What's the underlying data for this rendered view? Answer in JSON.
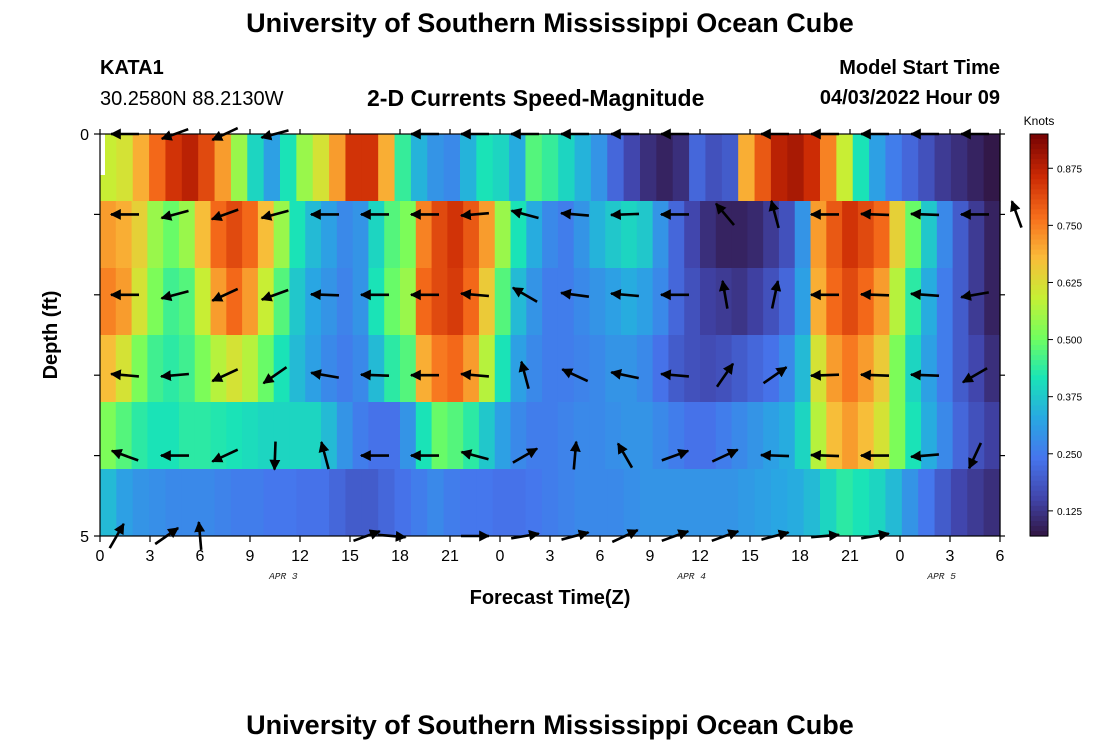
{
  "header": {
    "title": "University of Southern Mississippi Ocean Cube",
    "station": "KATA1",
    "coords": "30.2580N  88.2130W",
    "plot_title": "2-D Currents Speed-Magnitude",
    "model_label": "Model Start Time",
    "model_value": "04/03/2022 Hour 09"
  },
  "footer": {
    "title": "University of Southern Mississippi Ocean Cube"
  },
  "chart_data": {
    "type": "heatmap",
    "xlabel": "Forecast Time(Z)",
    "ylabel": "Depth (ft)",
    "x_ticks": [
      "0",
      "3",
      "6",
      "9",
      "12",
      "15",
      "18",
      "21",
      "0",
      "3",
      "6",
      "9",
      "12",
      "15",
      "18",
      "21",
      "0",
      "3",
      "6"
    ],
    "date_labels": [
      {
        "label": "APR 3",
        "hour": 11
      },
      {
        "label": "APR 4",
        "hour": 35.5
      },
      {
        "label": "APR 5",
        "hour": 50.5
      }
    ],
    "xlim": [
      0,
      54
    ],
    "ylim": [
      0,
      5
    ],
    "y_ticks": [
      "0",
      "",
      "",
      "",
      "",
      "5"
    ],
    "depth_rows": [
      0,
      1,
      2,
      3,
      4,
      5
    ],
    "colorbar": {
      "label": "Knots",
      "min": 0.07,
      "max": 0.95,
      "ticks": [
        "0.125",
        "0.250",
        "0.375",
        "0.500",
        "0.625",
        "0.750",
        "0.875"
      ]
    },
    "speed_knots": [
      [
        0.6,
        0.62,
        0.7,
        0.78,
        0.85,
        0.88,
        0.82,
        0.72,
        0.55,
        0.4,
        0.32,
        0.42,
        0.55,
        0.62,
        0.72,
        0.85,
        0.85,
        0.7,
        0.45,
        0.35,
        0.3,
        0.28,
        0.35,
        0.42,
        0.4,
        0.34,
        0.48,
        0.45,
        0.4,
        0.35,
        0.3,
        0.22,
        0.16,
        0.12,
        0.1,
        0.12,
        0.22,
        0.18,
        0.2,
        0.7,
        0.8,
        0.88,
        0.9,
        0.86,
        0.75,
        0.6,
        0.42,
        0.32,
        0.26,
        0.22,
        0.18,
        0.14,
        0.12,
        0.1,
        0.08
      ],
      [
        0.72,
        0.7,
        0.65,
        0.55,
        0.5,
        0.55,
        0.68,
        0.78,
        0.82,
        0.78,
        0.68,
        0.55,
        0.42,
        0.36,
        0.32,
        0.28,
        0.3,
        0.4,
        0.48,
        0.52,
        0.75,
        0.82,
        0.85,
        0.8,
        0.72,
        0.55,
        0.42,
        0.34,
        0.28,
        0.26,
        0.3,
        0.35,
        0.38,
        0.4,
        0.38,
        0.3,
        0.22,
        0.16,
        0.12,
        0.1,
        0.1,
        0.11,
        0.14,
        0.18,
        0.3,
        0.72,
        0.8,
        0.85,
        0.82,
        0.78,
        0.65,
        0.5,
        0.38,
        0.28,
        0.2,
        0.14,
        0.1
      ],
      [
        0.75,
        0.72,
        0.62,
        0.52,
        0.46,
        0.48,
        0.6,
        0.72,
        0.78,
        0.72,
        0.6,
        0.48,
        0.38,
        0.33,
        0.3,
        0.27,
        0.3,
        0.42,
        0.5,
        0.55,
        0.78,
        0.82,
        0.84,
        0.78,
        0.66,
        0.48,
        0.36,
        0.3,
        0.26,
        0.26,
        0.28,
        0.3,
        0.32,
        0.34,
        0.32,
        0.28,
        0.22,
        0.18,
        0.15,
        0.14,
        0.13,
        0.15,
        0.18,
        0.22,
        0.32,
        0.7,
        0.78,
        0.82,
        0.78,
        0.72,
        0.58,
        0.44,
        0.34,
        0.26,
        0.2,
        0.14,
        0.1
      ],
      [
        0.68,
        0.62,
        0.52,
        0.46,
        0.44,
        0.46,
        0.52,
        0.58,
        0.62,
        0.58,
        0.5,
        0.42,
        0.36,
        0.32,
        0.28,
        0.26,
        0.28,
        0.36,
        0.44,
        0.48,
        0.7,
        0.76,
        0.78,
        0.72,
        0.58,
        0.42,
        0.32,
        0.28,
        0.26,
        0.26,
        0.27,
        0.28,
        0.3,
        0.3,
        0.28,
        0.24,
        0.2,
        0.18,
        0.17,
        0.18,
        0.2,
        0.22,
        0.24,
        0.28,
        0.36,
        0.62,
        0.72,
        0.76,
        0.72,
        0.66,
        0.52,
        0.4,
        0.32,
        0.26,
        0.2,
        0.16,
        0.12
      ],
      [
        0.52,
        0.48,
        0.44,
        0.42,
        0.42,
        0.44,
        0.44,
        0.43,
        0.42,
        0.41,
        0.4,
        0.4,
        0.4,
        0.4,
        0.36,
        0.3,
        0.26,
        0.24,
        0.24,
        0.3,
        0.42,
        0.5,
        0.48,
        0.44,
        0.38,
        0.32,
        0.28,
        0.26,
        0.26,
        0.27,
        0.28,
        0.28,
        0.29,
        0.3,
        0.3,
        0.28,
        0.26,
        0.24,
        0.24,
        0.26,
        0.28,
        0.3,
        0.32,
        0.34,
        0.4,
        0.58,
        0.68,
        0.72,
        0.68,
        0.62,
        0.52,
        0.42,
        0.34,
        0.28,
        0.22,
        0.18,
        0.15
      ],
      [
        0.36,
        0.32,
        0.3,
        0.29,
        0.28,
        0.28,
        0.28,
        0.27,
        0.26,
        0.26,
        0.25,
        0.25,
        0.24,
        0.24,
        0.22,
        0.2,
        0.2,
        0.22,
        0.24,
        0.26,
        0.28,
        0.26,
        0.25,
        0.25,
        0.24,
        0.24,
        0.25,
        0.26,
        0.27,
        0.28,
        0.28,
        0.28,
        0.29,
        0.3,
        0.3,
        0.3,
        0.3,
        0.3,
        0.3,
        0.31,
        0.32,
        0.33,
        0.34,
        0.36,
        0.4,
        0.44,
        0.42,
        0.4,
        0.36,
        0.3,
        0.25,
        0.2,
        0.16,
        0.14,
        0.12
      ]
    ],
    "vector_hours": [
      1.5,
      4.5,
      7.5,
      10.5,
      13.5,
      16.5,
      19.5,
      22.5,
      25.5,
      28.5,
      31.5,
      34.5,
      37.5,
      40.5,
      43.5,
      46.5,
      49.5,
      52.5
    ],
    "vector_rows": [
      {
        "depth": 0,
        "hours": [
          1.5,
          4.5,
          7.5,
          10.5,
          19.5,
          22.5,
          25.5,
          28.5,
          31.5,
          34.5,
          40.5,
          43.5,
          46.5,
          49.5,
          52.5
        ],
        "dirs": [
          180,
          200,
          205,
          195,
          180,
          180,
          180,
          180,
          180,
          180,
          180,
          180,
          180,
          180,
          180
        ]
      },
      {
        "depth": 1,
        "hours": [
          1.5,
          4.5,
          7.5,
          10.5,
          13.5,
          16.5,
          19.5,
          22.5,
          25.5,
          28.5,
          31.5,
          34.5,
          37.5,
          40.5,
          43.5,
          46.5,
          49.5,
          52.5,
          55
        ],
        "dirs": [
          180,
          195,
          200,
          195,
          180,
          180,
          180,
          185,
          165,
          175,
          182,
          180,
          130,
          105,
          180,
          178,
          178,
          180,
          110
        ]
      },
      {
        "depth": 2,
        "hours": [
          1.5,
          4.5,
          7.5,
          10.5,
          13.5,
          16.5,
          19.5,
          22.5,
          25.5,
          28.5,
          31.5,
          34.5,
          37.5,
          40.5,
          43.5,
          46.5,
          49.5,
          52.5
        ],
        "dirs": [
          180,
          195,
          205,
          200,
          178,
          180,
          180,
          175,
          150,
          172,
          175,
          180,
          100,
          78,
          180,
          178,
          176,
          190
        ]
      },
      {
        "depth": 3,
        "hours": [
          1.5,
          4.5,
          7.5,
          10.5,
          13.5,
          16.5,
          19.5,
          22.5,
          25.5,
          28.5,
          31.5,
          34.5,
          37.5,
          40.5,
          43.5,
          46.5,
          49.5,
          52.5
        ],
        "dirs": [
          175,
          185,
          205,
          215,
          170,
          178,
          180,
          175,
          105,
          155,
          168,
          175,
          55,
          35,
          182,
          178,
          178,
          210
        ]
      },
      {
        "depth": 4,
        "hours": [
          1.5,
          4.5,
          7.5,
          10.5,
          13.5,
          16.5,
          19.5,
          22.5,
          25.5,
          28.5,
          31.5,
          34.5,
          37.5,
          40.5,
          43.5,
          46.5,
          49.5,
          52.5
        ],
        "dirs": [
          160,
          180,
          205,
          268,
          105,
          180,
          180,
          165,
          30,
          85,
          120,
          20,
          25,
          178,
          178,
          180,
          185,
          245
        ]
      },
      {
        "depth": 5,
        "hours": [
          1,
          4,
          6,
          16,
          17.5,
          22.5,
          25.5,
          28.5,
          31.5,
          34.5,
          37.5,
          40.5,
          43.5,
          46.5
        ],
        "dirs": [
          60,
          35,
          95,
          20,
          -5,
          0,
          10,
          15,
          25,
          20,
          20,
          15,
          5,
          10
        ]
      }
    ]
  }
}
